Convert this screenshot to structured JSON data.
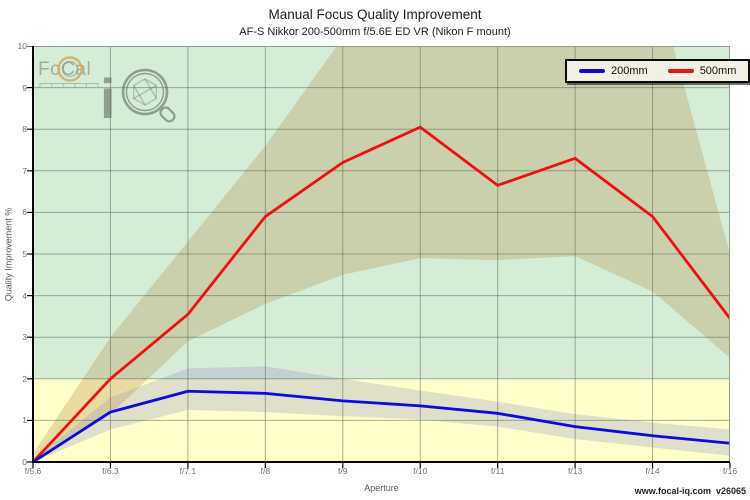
{
  "logo": {
    "text": "FoCal",
    "mark": "iq",
    "mark_letter": "i"
  },
  "footer": "www.focal-iq.com  v26065",
  "chart_data": {
    "type": "line",
    "title": "Manual Focus Quality Improvement",
    "subtitle": "AF-S Nikkor 200-500mm f/5.6E ED VR (Nikon F mount)",
    "xlabel": "Aperture",
    "ylabel": "Quality Improvement %",
    "x": [
      "f/5.6",
      "f/6.3",
      "f/7.1",
      "f/8",
      "f/9",
      "f/10",
      "f/11",
      "f/13",
      "f/14",
      "f/16"
    ],
    "ylim": [
      0,
      10
    ],
    "yticks": [
      0,
      1,
      2,
      3,
      4,
      5,
      6,
      7,
      8,
      9,
      10
    ],
    "grid": true,
    "legend_position": "top-right",
    "background_zones": [
      {
        "label": "low-improvement-zone",
        "from": 0,
        "to": 2,
        "color": "#ffffc9"
      },
      {
        "label": "improvement-zone",
        "from": 2,
        "to": 10,
        "color": "#d5edd6"
      }
    ],
    "series": [
      {
        "name": "200mm",
        "color": "#0b0bdf",
        "values": [
          0,
          1.2,
          1.7,
          1.65,
          1.47,
          1.35,
          1.17,
          0.85,
          0.63,
          0.45
        ],
        "band": {
          "color": "rgba(140,145,200,0.28)",
          "upper": [
            0.05,
            1.55,
            2.25,
            2.3,
            2.0,
            1.72,
            1.45,
            1.15,
            0.95,
            0.78
          ],
          "lower": [
            0,
            0.78,
            1.25,
            1.2,
            1.1,
            1.02,
            0.85,
            0.55,
            0.35,
            0.15
          ]
        }
      },
      {
        "name": "500mm",
        "color": "#ed1111",
        "values": [
          0,
          2.0,
          3.55,
          5.9,
          7.2,
          8.05,
          6.65,
          7.3,
          5.9,
          3.45
        ],
        "band": {
          "color": "rgba(185,145,85,0.32)",
          "upper": [
            0.2,
            3.0,
            5.3,
            7.6,
            10.2,
            11.5,
            11.5,
            11.5,
            11.8,
            5.0
          ],
          "lower": [
            0,
            1.15,
            2.9,
            3.8,
            4.5,
            4.9,
            4.85,
            4.95,
            4.1,
            2.5
          ]
        }
      }
    ]
  }
}
